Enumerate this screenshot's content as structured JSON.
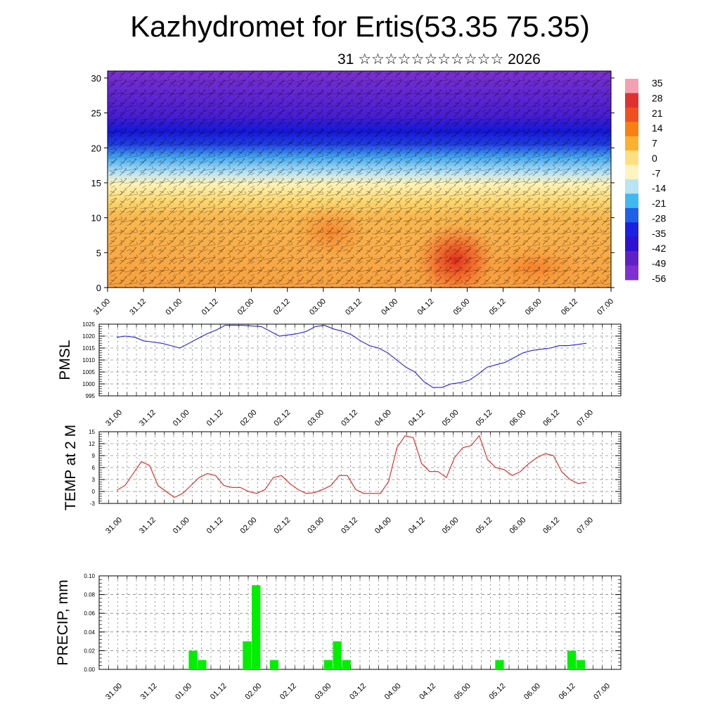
{
  "title": "Kazhydromet for Ertis(53.35 75.35)",
  "subtitle": "31 ☆☆☆☆☆☆☆☆☆☆☆ 2026",
  "time_labels": [
    "31.00",
    "31.12",
    "01.00",
    "01.12",
    "02.00",
    "02.12",
    "03.00",
    "03.12",
    "04.00",
    "04.12",
    "05.00",
    "05.12",
    "06.00",
    "06.12",
    "07.00"
  ],
  "colorbar": {
    "labels": [
      "35",
      "28",
      "21",
      "14",
      "7",
      "0",
      "-7",
      "-14",
      "-21",
      "-28",
      "-35",
      "-42",
      "-49",
      "-56"
    ],
    "colors": [
      "#f5a0b0",
      "#e03030",
      "#f05020",
      "#f88010",
      "#fbb030",
      "#fde080",
      "#fdf4c0",
      "#b8e4f4",
      "#40b8f0",
      "#2060e8",
      "#1c20e0",
      "#3010d0",
      "#6020c8",
      "#8030d0"
    ]
  },
  "chart_data": [
    {
      "type": "heatmap",
      "name": "cross-section",
      "ylim": [
        0,
        31
      ],
      "yticks": [
        "0",
        "5",
        "10",
        "15",
        "20",
        "25",
        "30"
      ],
      "description_values": {
        "levels_km": [
          0,
          5,
          10,
          15,
          20,
          25,
          30
        ],
        "temperature_profile_C": [
          9,
          7,
          5,
          -10,
          -45,
          -56,
          -52
        ]
      },
      "color_bands": [
        {
          "from": 0,
          "to": 12,
          "color": "#f8b040"
        },
        {
          "from": 12,
          "to": 15,
          "color": "#fde68a"
        },
        {
          "from": 15,
          "to": 18,
          "color": "#bfe6f7"
        },
        {
          "from": 18,
          "to": 20,
          "color": "#4aa8ee"
        },
        {
          "from": 20,
          "to": 23,
          "color": "#1c28e0"
        },
        {
          "from": 23,
          "to": 31,
          "color": "#6a2ad0"
        }
      ],
      "warm_spot": {
        "time": "04.12",
        "level": 4,
        "value": 21
      }
    },
    {
      "type": "line",
      "ylabel": "PMSL",
      "ylim": [
        995,
        1025
      ],
      "yticks": [
        "995",
        "1000",
        "1005",
        "1010",
        "1015",
        "1020",
        "1025"
      ],
      "color": "#2020e0",
      "values": [
        1019.5,
        1020,
        1019.5,
        1018,
        1017.5,
        1017,
        1016,
        1015,
        1017,
        1019,
        1021,
        1022.5,
        1024.5,
        1024.5,
        1024.5,
        1024.2,
        1024,
        1022,
        1020,
        1020.5,
        1021,
        1022,
        1024,
        1024.5,
        1023,
        1022,
        1020.5,
        1018,
        1016,
        1015,
        1013,
        1010,
        1007,
        1005,
        1001,
        998.5,
        998.5,
        1000,
        1000.5,
        1001.5,
        1004,
        1007,
        1008,
        1009,
        1011,
        1013,
        1014,
        1014.5,
        1015,
        1016,
        1016,
        1016.5,
        1017
      ]
    },
    {
      "type": "line",
      "ylabel": "TEMP at 2 M",
      "ylim": [
        -3,
        15
      ],
      "yticks": [
        "-3",
        "0",
        "3",
        "6",
        "9",
        "12",
        "15"
      ],
      "color": "#e02020",
      "values": [
        0.3,
        1.5,
        4.5,
        7.5,
        6.5,
        1.5,
        0,
        -1.5,
        -0.5,
        1.5,
        3.5,
        4.5,
        4,
        1.5,
        1,
        1,
        0,
        -0.5,
        0.5,
        3.5,
        4,
        2,
        0.5,
        -0.5,
        -0.3,
        0.5,
        1.5,
        4,
        4,
        0.5,
        -0.5,
        -0.5,
        -0.5,
        2.5,
        11,
        14,
        13.5,
        7,
        5,
        5,
        3.5,
        8.5,
        11,
        11.5,
        14,
        8,
        6,
        5.5,
        4,
        5,
        7,
        8.5,
        9.5,
        9,
        5,
        3,
        2,
        2.3
      ]
    },
    {
      "type": "bar",
      "ylabel": "PRECIP, mm",
      "ylim": [
        0,
        0.1
      ],
      "yticks": [
        "0.00",
        "0.02",
        "0.04",
        "0.06",
        "0.08",
        "0.10"
      ],
      "color": "#00ee00",
      "bars": [
        {
          "time_index": 9,
          "value": 0.02
        },
        {
          "time_index": 10,
          "value": 0.01
        },
        {
          "time_index": 15,
          "value": 0.03
        },
        {
          "time_index": 16,
          "value": 0.09
        },
        {
          "time_index": 18,
          "value": 0.01
        },
        {
          "time_index": 24,
          "value": 0.01
        },
        {
          "time_index": 25,
          "value": 0.03
        },
        {
          "time_index": 26,
          "value": 0.01
        },
        {
          "time_index": 43,
          "value": 0.01
        },
        {
          "time_index": 51,
          "value": 0.02
        },
        {
          "time_index": 52,
          "value": 0.01
        }
      ],
      "n_steps": 56
    }
  ]
}
